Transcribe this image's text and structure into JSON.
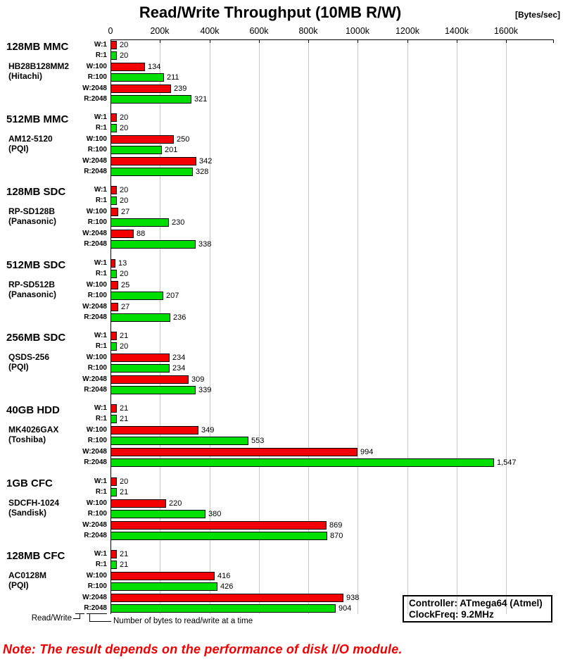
{
  "title": "Read/Write Throughput (10MB R/W)",
  "units_label": "[Bytes/sec]",
  "note": "Note: The result depends on the performance of disk I/O module.",
  "info_box": {
    "controller": "Controller: ATmega64 (Atmel)",
    "clock": "ClockFreq: 9.2MHz"
  },
  "legend": {
    "read_write": "Read/Write",
    "bytes_at_a_time": "Number of bytes to read/write at a time"
  },
  "colors": {
    "write_bar": "#f30000",
    "read_bar": "#00e000",
    "gridline": "#c9c9c9",
    "note_text": "#f00000"
  },
  "chart_data": {
    "type": "bar",
    "orientation": "horizontal",
    "title": "Read/Write Throughput (10MB R/W)",
    "value_unit": "Bytes/sec",
    "value_scale_note": "bar value labels are in kBytes/sec",
    "xlim_k": [
      0,
      1800
    ],
    "tick_interval_k": 200,
    "x_tick_labels": [
      "0",
      "200k",
      "400k",
      "600k",
      "800k",
      "1000k",
      "1200k",
      "1400k",
      "1600k"
    ],
    "grid": true,
    "groups": [
      {
        "device": "128MB MMC",
        "model": "HB28B128MM2",
        "brand": "(Hitachi)",
        "bars": [
          {
            "label": "W:1",
            "op": "write",
            "value_k": 20,
            "display": "20"
          },
          {
            "label": "R:1",
            "op": "read",
            "value_k": 20,
            "display": "20"
          },
          {
            "label": "W:100",
            "op": "write",
            "value_k": 134,
            "display": "134"
          },
          {
            "label": "R:100",
            "op": "read",
            "value_k": 211,
            "display": "211"
          },
          {
            "label": "W:2048",
            "op": "write",
            "value_k": 239,
            "display": "239"
          },
          {
            "label": "R:2048",
            "op": "read",
            "value_k": 321,
            "display": "321"
          }
        ]
      },
      {
        "device": "512MB MMC",
        "model": "AM12-5120",
        "brand": "(PQI)",
        "bars": [
          {
            "label": "W:1",
            "op": "write",
            "value_k": 20,
            "display": "20"
          },
          {
            "label": "R:1",
            "op": "read",
            "value_k": 20,
            "display": "20"
          },
          {
            "label": "W:100",
            "op": "write",
            "value_k": 250,
            "display": "250"
          },
          {
            "label": "R:100",
            "op": "read",
            "value_k": 201,
            "display": "201"
          },
          {
            "label": "W:2048",
            "op": "write",
            "value_k": 342,
            "display": "342"
          },
          {
            "label": "R:2048",
            "op": "read",
            "value_k": 328,
            "display": "328"
          }
        ]
      },
      {
        "device": "128MB SDC",
        "model": "RP-SD128B",
        "brand": "(Panasonic)",
        "bars": [
          {
            "label": "W:1",
            "op": "write",
            "value_k": 20,
            "display": "20"
          },
          {
            "label": "R:1",
            "op": "read",
            "value_k": 20,
            "display": "20"
          },
          {
            "label": "W:100",
            "op": "write",
            "value_k": 27,
            "display": "27"
          },
          {
            "label": "R:100",
            "op": "read",
            "value_k": 230,
            "display": "230"
          },
          {
            "label": "W:2048",
            "op": "write",
            "value_k": 88,
            "display": "88"
          },
          {
            "label": "R:2048",
            "op": "read",
            "value_k": 338,
            "display": "338"
          }
        ]
      },
      {
        "device": "512MB SDC",
        "model": "RP-SD512B",
        "brand": "(Panasonic)",
        "bars": [
          {
            "label": "W:1",
            "op": "write",
            "value_k": 13,
            "display": "13"
          },
          {
            "label": "R:1",
            "op": "read",
            "value_k": 20,
            "display": "20"
          },
          {
            "label": "W:100",
            "op": "write",
            "value_k": 25,
            "display": "25"
          },
          {
            "label": "R:100",
            "op": "read",
            "value_k": 207,
            "display": "207"
          },
          {
            "label": "W:2048",
            "op": "write",
            "value_k": 27,
            "display": "27"
          },
          {
            "label": "R:2048",
            "op": "read",
            "value_k": 236,
            "display": "236"
          }
        ]
      },
      {
        "device": "256MB SDC",
        "model": "QSDS-256",
        "brand": "(PQI)",
        "bars": [
          {
            "label": "W:1",
            "op": "write",
            "value_k": 21,
            "display": "21"
          },
          {
            "label": "R:1",
            "op": "read",
            "value_k": 20,
            "display": "20"
          },
          {
            "label": "W:100",
            "op": "write",
            "value_k": 234,
            "display": "234"
          },
          {
            "label": "R:100",
            "op": "read",
            "value_k": 234,
            "display": "234"
          },
          {
            "label": "W:2048",
            "op": "write",
            "value_k": 309,
            "display": "309"
          },
          {
            "label": "R:2048",
            "op": "read",
            "value_k": 339,
            "display": "339"
          }
        ]
      },
      {
        "device": "40GB HDD",
        "model": "MK4026GAX",
        "brand": "(Toshiba)",
        "bars": [
          {
            "label": "W:1",
            "op": "write",
            "value_k": 21,
            "display": "21"
          },
          {
            "label": "R:1",
            "op": "read",
            "value_k": 21,
            "display": "21"
          },
          {
            "label": "W:100",
            "op": "write",
            "value_k": 349,
            "display": "349"
          },
          {
            "label": "R:100",
            "op": "read",
            "value_k": 553,
            "display": "553"
          },
          {
            "label": "W:2048",
            "op": "write",
            "value_k": 994,
            "display": "994"
          },
          {
            "label": "R:2048",
            "op": "read",
            "value_k": 1547,
            "display": "1,547"
          }
        ]
      },
      {
        "device": "1GB CFC",
        "model": "SDCFH-1024",
        "brand": "(Sandisk)",
        "bars": [
          {
            "label": "W:1",
            "op": "write",
            "value_k": 20,
            "display": "20"
          },
          {
            "label": "R:1",
            "op": "read",
            "value_k": 21,
            "display": "21"
          },
          {
            "label": "W:100",
            "op": "write",
            "value_k": 220,
            "display": "220"
          },
          {
            "label": "R:100",
            "op": "read",
            "value_k": 380,
            "display": "380"
          },
          {
            "label": "W:2048",
            "op": "write",
            "value_k": 869,
            "display": "869"
          },
          {
            "label": "R:2048",
            "op": "read",
            "value_k": 870,
            "display": "870"
          }
        ]
      },
      {
        "device": "128MB CFC",
        "model": "AC0128M",
        "brand": "(PQI)",
        "bars": [
          {
            "label": "W:1",
            "op": "write",
            "value_k": 21,
            "display": "21"
          },
          {
            "label": "R:1",
            "op": "read",
            "value_k": 21,
            "display": "21"
          },
          {
            "label": "W:100",
            "op": "write",
            "value_k": 416,
            "display": "416"
          },
          {
            "label": "R:100",
            "op": "read",
            "value_k": 426,
            "display": "426"
          },
          {
            "label": "W:2048",
            "op": "write",
            "value_k": 938,
            "display": "938"
          },
          {
            "label": "R:2048",
            "op": "read",
            "value_k": 904,
            "display": "904"
          }
        ]
      }
    ]
  }
}
